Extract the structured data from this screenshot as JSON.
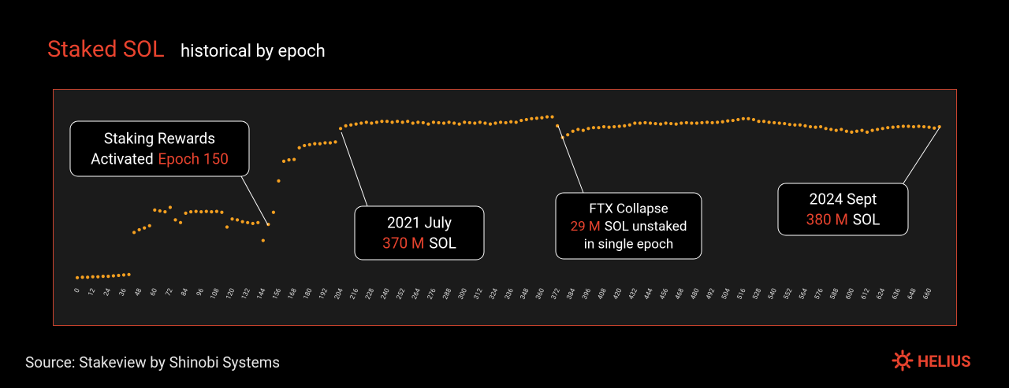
{
  "chart_data": {
    "type": "scatter",
    "title": "Staked SOL",
    "subtitle": "historical by epoch",
    "color": "#f5a020",
    "title_color": "#e8432e",
    "highlight_color": "#e8432e",
    "xlim": [
      -4,
      670
    ],
    "ylim": [
      0,
      420
    ],
    "xticks": [
      0,
      12,
      24,
      36,
      48,
      60,
      72,
      84,
      96,
      108,
      120,
      132,
      144,
      156,
      168,
      180,
      192,
      204,
      216,
      228,
      240,
      252,
      264,
      276,
      288,
      300,
      312,
      324,
      336,
      348,
      360,
      372,
      384,
      396,
      408,
      420,
      432,
      444,
      456,
      468,
      480,
      492,
      504,
      516,
      528,
      540,
      552,
      564,
      576,
      588,
      600,
      612,
      624,
      636,
      648,
      660
    ],
    "x": [
      0,
      4,
      8,
      12,
      16,
      20,
      24,
      28,
      32,
      36,
      40,
      44,
      48,
      52,
      56,
      60,
      64,
      68,
      72,
      76,
      80,
      84,
      88,
      92,
      96,
      100,
      104,
      108,
      112,
      116,
      120,
      124,
      128,
      132,
      136,
      140,
      144,
      148,
      152,
      156,
      160,
      164,
      168,
      172,
      176,
      180,
      184,
      188,
      192,
      196,
      200,
      204,
      208,
      212,
      216,
      220,
      224,
      228,
      232,
      236,
      240,
      244,
      248,
      252,
      256,
      260,
      264,
      268,
      272,
      276,
      280,
      284,
      288,
      292,
      296,
      300,
      304,
      308,
      312,
      316,
      320,
      324,
      328,
      332,
      336,
      340,
      344,
      348,
      352,
      356,
      360,
      364,
      368,
      372,
      376,
      380,
      384,
      388,
      392,
      396,
      400,
      404,
      408,
      412,
      416,
      420,
      424,
      428,
      432,
      436,
      440,
      444,
      448,
      452,
      456,
      460,
      464,
      468,
      472,
      476,
      480,
      484,
      488,
      492,
      496,
      500,
      504,
      508,
      512,
      516,
      520,
      524,
      528,
      532,
      536,
      540,
      544,
      548,
      552,
      556,
      560,
      564,
      568,
      572,
      576,
      580,
      584,
      588,
      592,
      596,
      600,
      604,
      608,
      612,
      616,
      620,
      624,
      628,
      632,
      636,
      640,
      644,
      648,
      652,
      656,
      660,
      664,
      668
    ],
    "values": [
      39,
      40,
      40,
      41,
      41,
      42,
      42,
      43,
      44,
      45,
      46,
      140,
      146,
      150,
      155,
      190,
      188,
      186,
      196,
      168,
      162,
      183,
      186,
      187,
      186,
      187,
      186,
      187,
      185,
      152,
      170,
      168,
      164,
      162,
      160,
      162,
      122,
      158,
      185,
      255,
      299,
      302,
      303,
      329,
      334,
      336,
      338,
      338,
      340,
      340,
      342,
      372,
      378,
      380,
      382,
      384,
      386,
      384,
      386,
      388,
      388,
      386,
      388,
      386,
      388,
      384,
      386,
      385,
      382,
      386,
      385,
      384,
      386,
      384,
      382,
      386,
      385,
      384,
      386,
      384,
      382,
      384,
      386,
      385,
      387,
      386,
      390,
      392,
      394,
      395,
      396,
      398,
      398,
      378,
      352,
      358,
      366,
      370,
      368,
      372,
      374,
      374,
      376,
      375,
      376,
      377,
      378,
      380,
      384,
      384,
      385,
      384,
      383,
      382,
      384,
      383,
      382,
      384,
      385,
      384,
      384,
      385,
      386,
      385,
      386,
      387,
      389,
      390,
      392,
      394,
      394,
      392,
      388,
      388,
      386,
      385,
      384,
      383,
      381,
      380,
      380,
      378,
      376,
      375,
      376,
      372,
      370,
      368,
      370,
      366,
      364,
      366,
      368,
      364,
      368,
      370,
      372,
      374,
      375,
      376,
      377,
      377,
      376,
      377,
      376,
      375,
      373,
      376
    ],
    "annotations": [
      {
        "lines": [
          [
            {
              "text": "Staking Rewards"
            }
          ],
          [
            {
              "text": "Activated"
            },
            {
              "text": "Epoch 150",
              "highlight": true
            }
          ]
        ]
      },
      {
        "lines": [
          [
            {
              "text": "2021 July"
            }
          ],
          [
            {
              "text": "370 M",
              "highlight": true
            },
            {
              "text": "SOL"
            }
          ]
        ]
      },
      {
        "lines": [
          [
            {
              "text": "FTX Collapse"
            }
          ],
          [
            {
              "text": "29 M",
              "highlight": true
            },
            {
              "text": "SOL unstaked"
            }
          ],
          [
            {
              "text": "in single epoch"
            }
          ]
        ]
      },
      {
        "lines": [
          [
            {
              "text": "2024 Sept"
            }
          ],
          [
            {
              "text": "380 M",
              "highlight": true
            },
            {
              "text": "SOL"
            }
          ]
        ]
      }
    ],
    "source": "Source: Stakeview  by Shinobi Systems",
    "brand": "HELIUS"
  }
}
